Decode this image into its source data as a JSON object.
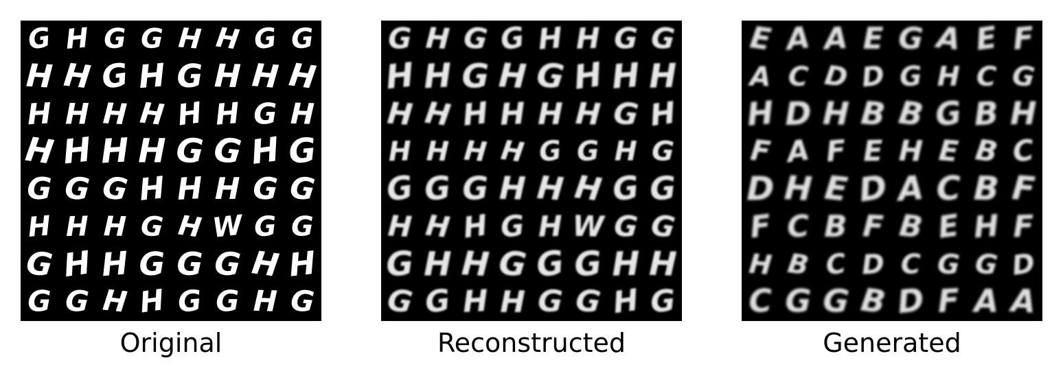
{
  "figure": {
    "panels": [
      {
        "caption": "Original",
        "grid": [
          [
            "G",
            "H",
            "G",
            "G",
            "H",
            "H",
            "G",
            "G"
          ],
          [
            "H",
            "H",
            "G",
            "H",
            "G",
            "H",
            "H",
            "H"
          ],
          [
            "H",
            "H",
            "H",
            "H",
            "H",
            "H",
            "G",
            "H"
          ],
          [
            "H",
            "H",
            "H",
            "H",
            "G",
            "G",
            "H",
            "G"
          ],
          [
            "G",
            "G",
            "G",
            "H",
            "H",
            "H",
            "G",
            "G"
          ],
          [
            "H",
            "H",
            "H",
            "G",
            "H",
            "W",
            "G",
            "G"
          ],
          [
            "G",
            "H",
            "H",
            "G",
            "G",
            "G",
            "H",
            "H"
          ],
          [
            "G",
            "G",
            "H",
            "H",
            "G",
            "G",
            "H",
            "G"
          ]
        ]
      },
      {
        "caption": "Reconstructed",
        "grid": [
          [
            "G",
            "H",
            "G",
            "G",
            "H",
            "H",
            "G",
            "G"
          ],
          [
            "H",
            "H",
            "G",
            "H",
            "G",
            "H",
            "H",
            "H"
          ],
          [
            "H",
            "H",
            "H",
            "H",
            "H",
            "H",
            "G",
            "H"
          ],
          [
            "H",
            "H",
            "H",
            "H",
            "G",
            "G",
            "H",
            "G"
          ],
          [
            "G",
            "G",
            "G",
            "H",
            "H",
            "H",
            "G",
            "G"
          ],
          [
            "H",
            "H",
            "H",
            "G",
            "H",
            "W",
            "G",
            "G"
          ],
          [
            "G",
            "H",
            "H",
            "G",
            "G",
            "G",
            "H",
            "H"
          ],
          [
            "G",
            "G",
            "H",
            "H",
            "G",
            "G",
            "H",
            "G"
          ]
        ]
      },
      {
        "caption": "Generated",
        "grid": [
          [
            "E",
            "A",
            "A",
            "E",
            "G",
            "A",
            "E",
            "F"
          ],
          [
            "A",
            "C",
            "D",
            "D",
            "G",
            "H",
            "C",
            "G"
          ],
          [
            "H",
            "D",
            "H",
            "B",
            "B",
            "G",
            "B",
            "H"
          ],
          [
            "F",
            "A",
            "F",
            "E",
            "H",
            "E",
            "B",
            "C"
          ],
          [
            "D",
            "H",
            "E",
            "D",
            "A",
            "C",
            "B",
            "F"
          ],
          [
            "F",
            "C",
            "B",
            "F",
            "B",
            "E",
            "H",
            "F"
          ],
          [
            "H",
            "B",
            "C",
            "D",
            "C",
            "G",
            "G",
            "D"
          ],
          [
            "C",
            "G",
            "G",
            "B",
            "D",
            "F",
            "A",
            "A"
          ]
        ]
      }
    ]
  }
}
